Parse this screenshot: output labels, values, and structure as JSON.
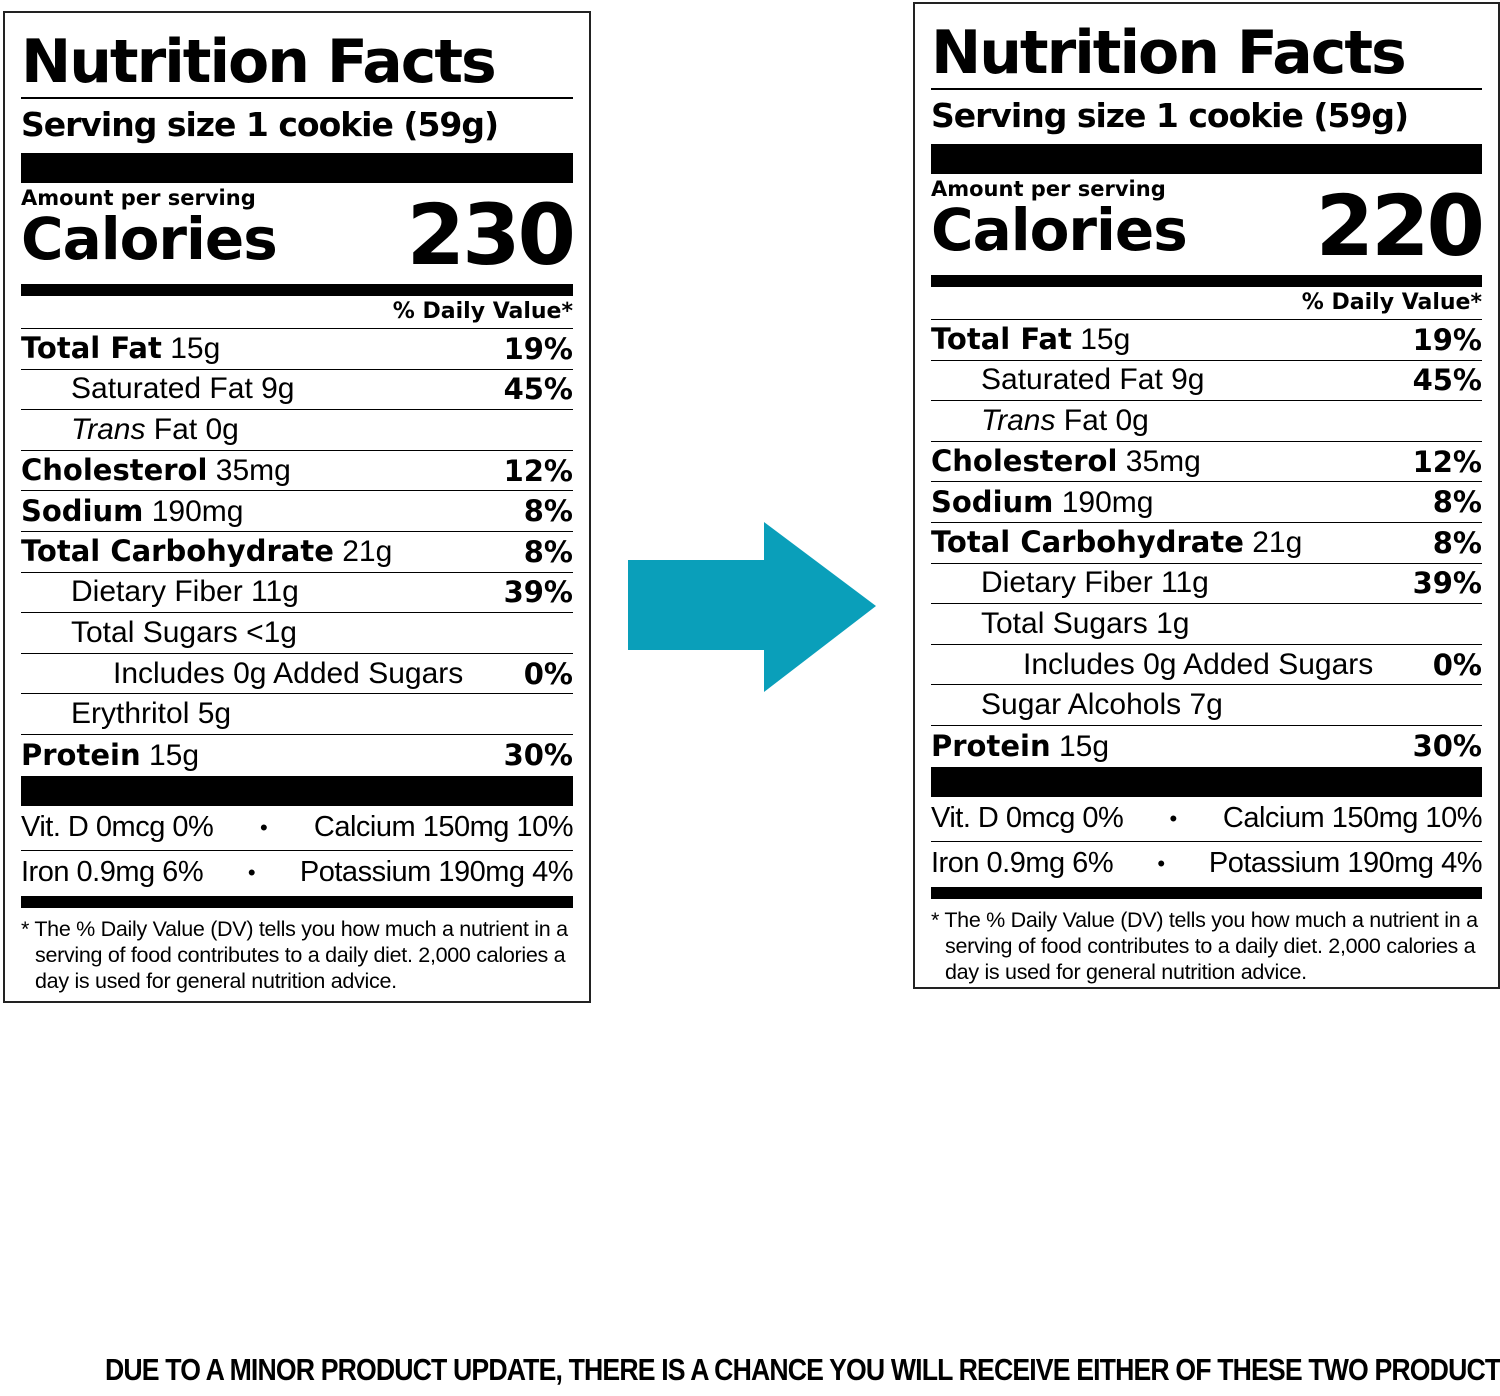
{
  "labels": [
    {
      "title": "Nutrition Facts",
      "serving": "Serving size 1 cookie (59g)",
      "amount_per_serving": "Amount per serving",
      "calories_label": "Calories",
      "calories": "230",
      "dv_header": "% Daily Value*",
      "rows": [
        {
          "name": "Total Fat",
          "amount": " 15g",
          "pct": "19%"
        },
        {
          "name": "Saturated Fat 9g",
          "pct": "45%"
        },
        {
          "name": "Trans",
          "amount": " Fat 0g",
          "pct": ""
        },
        {
          "name": "Cholesterol",
          "amount": " 35mg",
          "pct": "12%"
        },
        {
          "name": "Sodium",
          "amount": " 190mg",
          "pct": "8%"
        },
        {
          "name": "Total Carbohydrate",
          "amount": " 21g",
          "pct": "8%"
        },
        {
          "name": "Dietary Fiber 11g",
          "pct": "39%"
        },
        {
          "name": "Total Sugars <1g",
          "pct": ""
        },
        {
          "name": "Includes 0g Added Sugars",
          "pct": "0%"
        },
        {
          "name": "Erythritol 5g",
          "pct": ""
        },
        {
          "name": "Protein",
          "amount": " 15g",
          "pct": "30%"
        }
      ],
      "vitamins": [
        {
          "left": "Vit. D 0mcg 0%",
          "right": "Calcium 150mg 10%"
        },
        {
          "left": "Iron 0.9mg 6%",
          "right": "Potassium 190mg 4%"
        }
      ],
      "bullet": "•",
      "footnote": "* The % Daily Value (DV) tells you how much a nutrient in a serving of food contributes to a daily diet. 2,000 calories a day is used for general nutrition advice."
    },
    {
      "title": "Nutrition Facts",
      "serving": "Serving size 1 cookie (59g)",
      "amount_per_serving": "Amount per serving",
      "calories_label": "Calories",
      "calories": "220",
      "dv_header": "% Daily Value*",
      "rows": [
        {
          "name": "Total Fat",
          "amount": " 15g",
          "pct": "19%"
        },
        {
          "name": "Saturated Fat 9g",
          "pct": "45%"
        },
        {
          "name": "Trans",
          "amount": " Fat 0g",
          "pct": ""
        },
        {
          "name": "Cholesterol",
          "amount": " 35mg",
          "pct": "12%"
        },
        {
          "name": "Sodium",
          "amount": " 190mg",
          "pct": "8%"
        },
        {
          "name": "Total Carbohydrate",
          "amount": " 21g",
          "pct": "8%"
        },
        {
          "name": "Dietary Fiber 11g",
          "pct": "39%"
        },
        {
          "name": "Total Sugars 1g",
          "pct": ""
        },
        {
          "name": "Includes 0g Added Sugars",
          "pct": "0%"
        },
        {
          "name": "Sugar Alcohols 7g",
          "pct": ""
        },
        {
          "name": "Protein",
          "amount": " 15g",
          "pct": "30%"
        }
      ],
      "vitamins": [
        {
          "left": "Vit. D 0mcg 0%",
          "right": "Calcium 150mg 10%"
        },
        {
          "left": "Iron 0.9mg 6%",
          "right": "Potassium 190mg 4%"
        }
      ],
      "bullet": "•",
      "footnote": "* The % Daily Value (DV) tells you how much a nutrient in a serving of food contributes to a daily diet. 2,000 calories a day is used for general nutrition advice."
    }
  ],
  "arrow": {
    "color": "#0a9fba",
    "icon": "right-arrow-icon"
  },
  "disclaimer": "DUE TO A MINOR PRODUCT UPDATE, THERE IS A CHANCE YOU WILL RECEIVE EITHER OF THESE TWO PRODUCTS."
}
